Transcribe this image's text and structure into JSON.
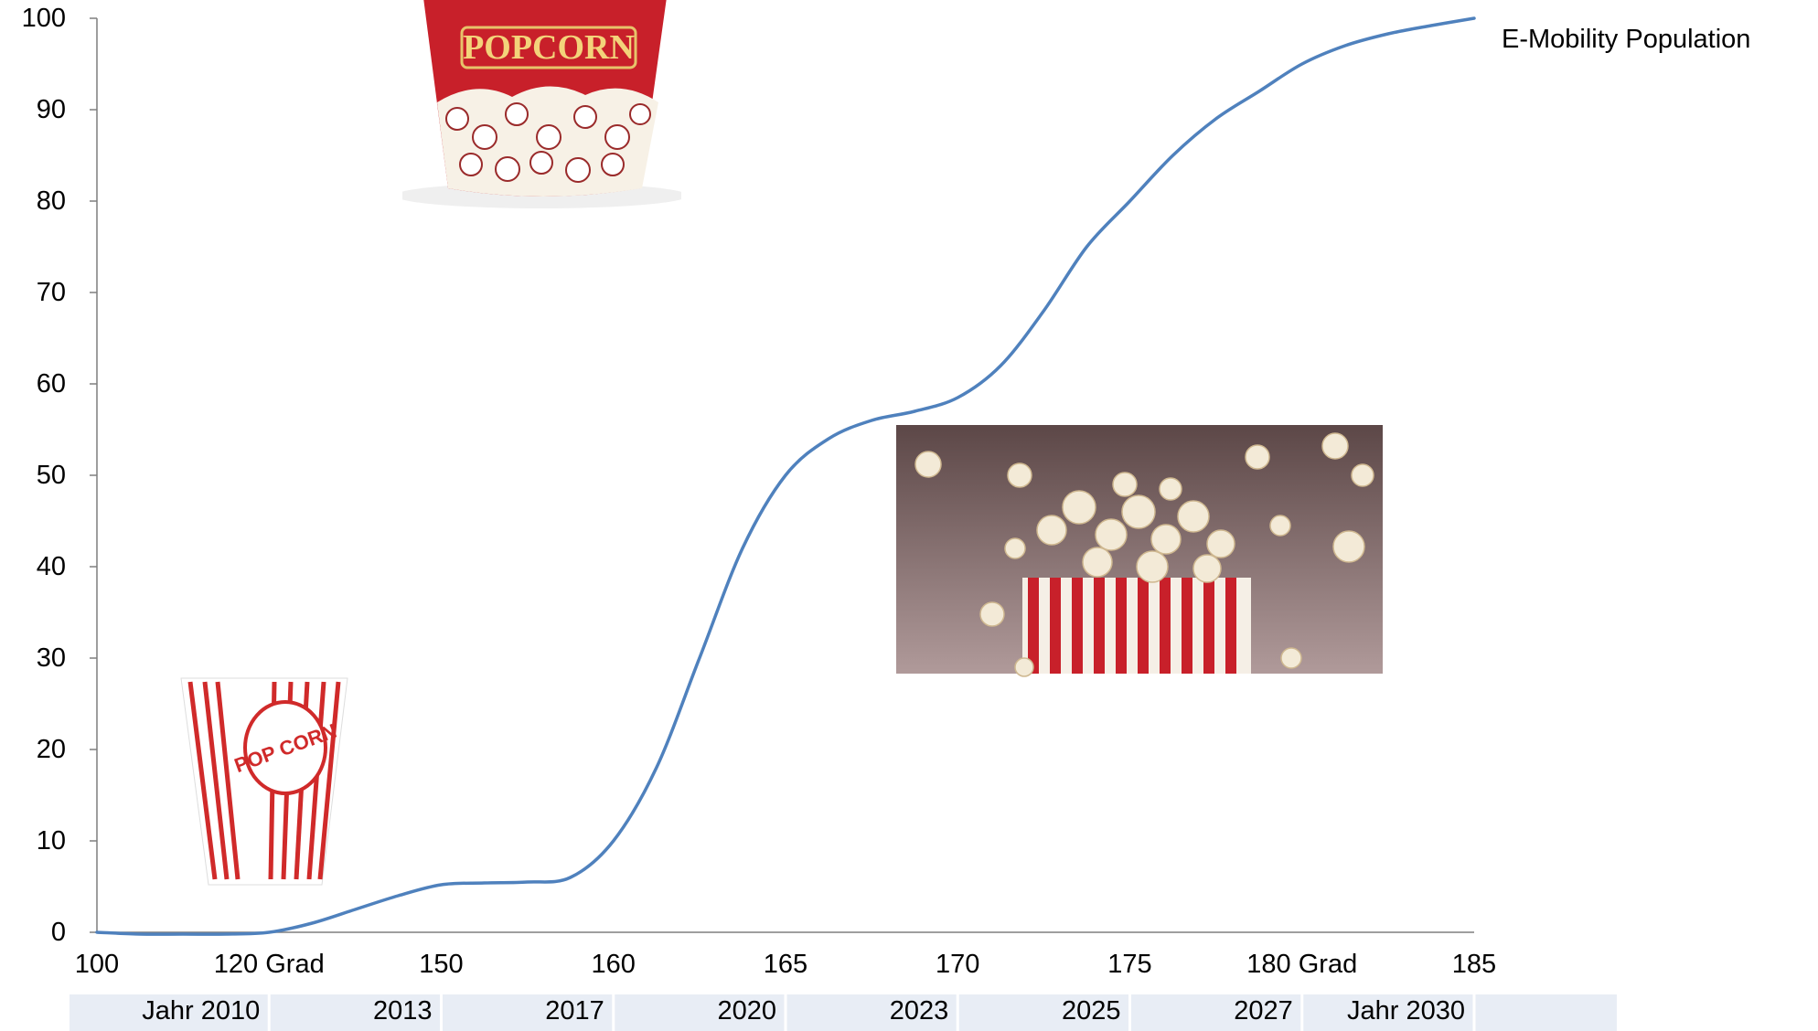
{
  "chart_data": {
    "type": "line",
    "title": "",
    "xlabel": "",
    "ylabel": "",
    "ylim": [
      0,
      100
    ],
    "y_ticks": [
      0,
      10,
      20,
      30,
      40,
      50,
      60,
      70,
      80,
      90,
      100
    ],
    "x_ticks": [
      "100",
      "120 Grad",
      "150",
      "160",
      "165",
      "170",
      "175",
      "180 Grad",
      "185"
    ],
    "year_row": [
      "Jahr 2010",
      "2013",
      "2017",
      "2020",
      "2023",
      "2025",
      "2027",
      "Jahr 2030"
    ],
    "grid": false,
    "series": [
      {
        "name": "E-Mobility Population",
        "color": "#4f81bd",
        "x": [
          0,
          0.25,
          0.5,
          0.75,
          1,
          1.25,
          1.5,
          1.75,
          2,
          2.25,
          2.5,
          2.75,
          3,
          3.25,
          3.5,
          3.75,
          4,
          4.25,
          4.5,
          4.75,
          5,
          5.25,
          5.5,
          5.75,
          6,
          6.25,
          6.5,
          6.75,
          7,
          7.25,
          7.5,
          7.75,
          8
        ],
        "values": [
          0,
          -0.2,
          -0.2,
          -0.2,
          0,
          1,
          2.5,
          4,
          5.2,
          5.4,
          5.5,
          6,
          10,
          18,
          30,
          42,
          50,
          54,
          56,
          57,
          58.5,
          62,
          68,
          75,
          80,
          85,
          89,
          92,
          95,
          97,
          98.3,
          99.2,
          100
        ]
      }
    ]
  },
  "images": [
    {
      "name": "popcorn-bucket-printed",
      "text": "POPCORN"
    },
    {
      "name": "popcorn-box-striped",
      "text": "POP CORN"
    },
    {
      "name": "popcorn-explosion"
    }
  ],
  "colors": {
    "line": "#4f81bd",
    "year_band": "#e8edf5",
    "popcorn_red": "#c8202a",
    "popcorn_white": "#f7f1e6"
  }
}
